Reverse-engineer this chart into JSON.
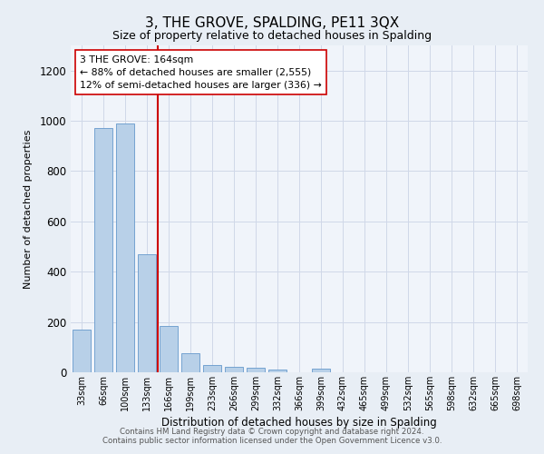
{
  "title": "3, THE GROVE, SPALDING, PE11 3QX",
  "subtitle": "Size of property relative to detached houses in Spalding",
  "xlabel": "Distribution of detached houses by size in Spalding",
  "ylabel": "Number of detached properties",
  "bar_color": "#b8d0e8",
  "bar_edge_color": "#6699cc",
  "background_color": "#e8eef5",
  "plot_bg_color": "#f0f4fa",
  "grid_color": "#d0d8e8",
  "categories": [
    "33sqm",
    "66sqm",
    "100sqm",
    "133sqm",
    "166sqm",
    "199sqm",
    "233sqm",
    "266sqm",
    "299sqm",
    "332sqm",
    "366sqm",
    "399sqm",
    "432sqm",
    "465sqm",
    "499sqm",
    "532sqm",
    "565sqm",
    "598sqm",
    "632sqm",
    "665sqm",
    "698sqm"
  ],
  "values": [
    170,
    970,
    990,
    470,
    185,
    75,
    30,
    22,
    18,
    12,
    0,
    15,
    0,
    0,
    0,
    0,
    0,
    0,
    0,
    0,
    0
  ],
  "ylim": [
    0,
    1300
  ],
  "yticks": [
    0,
    200,
    400,
    600,
    800,
    1000,
    1200
  ],
  "vline_color": "#cc0000",
  "annotation_text": "3 THE GROVE: 164sqm\n← 88% of detached houses are smaller (2,555)\n12% of semi-detached houses are larger (336) →",
  "annotation_box_color": "#ffffff",
  "annotation_box_edge": "#cc0000",
  "footer_line1": "Contains HM Land Registry data © Crown copyright and database right 2024.",
  "footer_line2": "Contains public sector information licensed under the Open Government Licence v3.0."
}
